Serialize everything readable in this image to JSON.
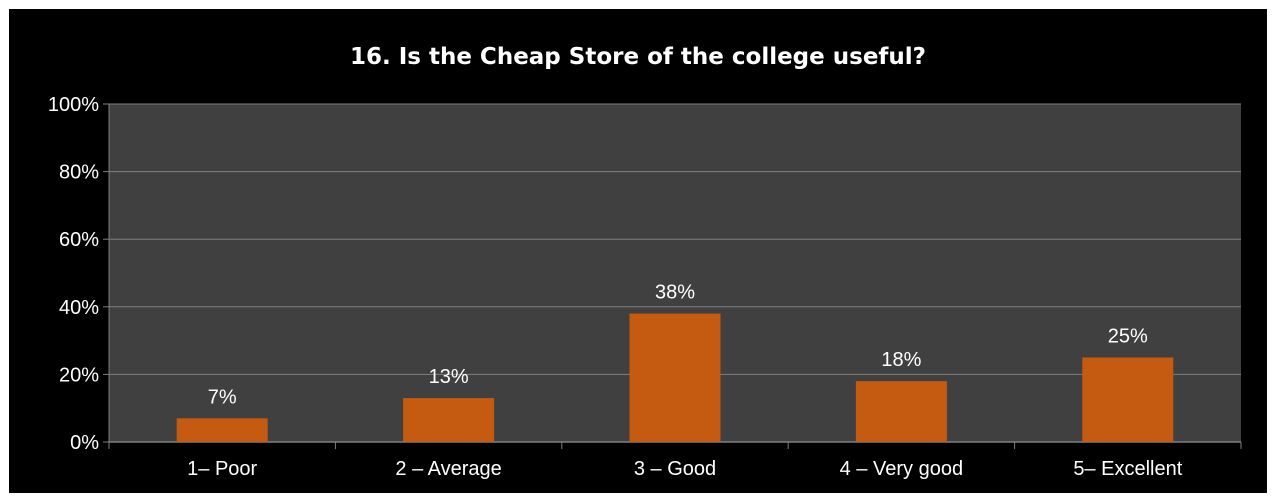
{
  "chart_data": {
    "type": "bar",
    "title": "16. Is the Cheap Store of the college useful?",
    "categories": [
      "1– Poor",
      "2 – Average",
      "3 – Good",
      "4 – Very good",
      "5– Excellent"
    ],
    "values": [
      7,
      13,
      38,
      18,
      25
    ],
    "data_labels": [
      "7%",
      "13%",
      "38%",
      "18%",
      "25%"
    ],
    "ylim": [
      0,
      100
    ],
    "ytick_values": [
      0,
      20,
      40,
      60,
      80,
      100
    ],
    "ytick_labels": [
      "0%",
      "20%",
      "40%",
      "60%",
      "80%",
      "100%"
    ],
    "grid": true,
    "legend": "none",
    "colors": {
      "background": "#000000",
      "plot_area": "#404040",
      "bar": "#c55a11",
      "gridline": "#7f7f7f",
      "text": "#ffffff"
    }
  }
}
